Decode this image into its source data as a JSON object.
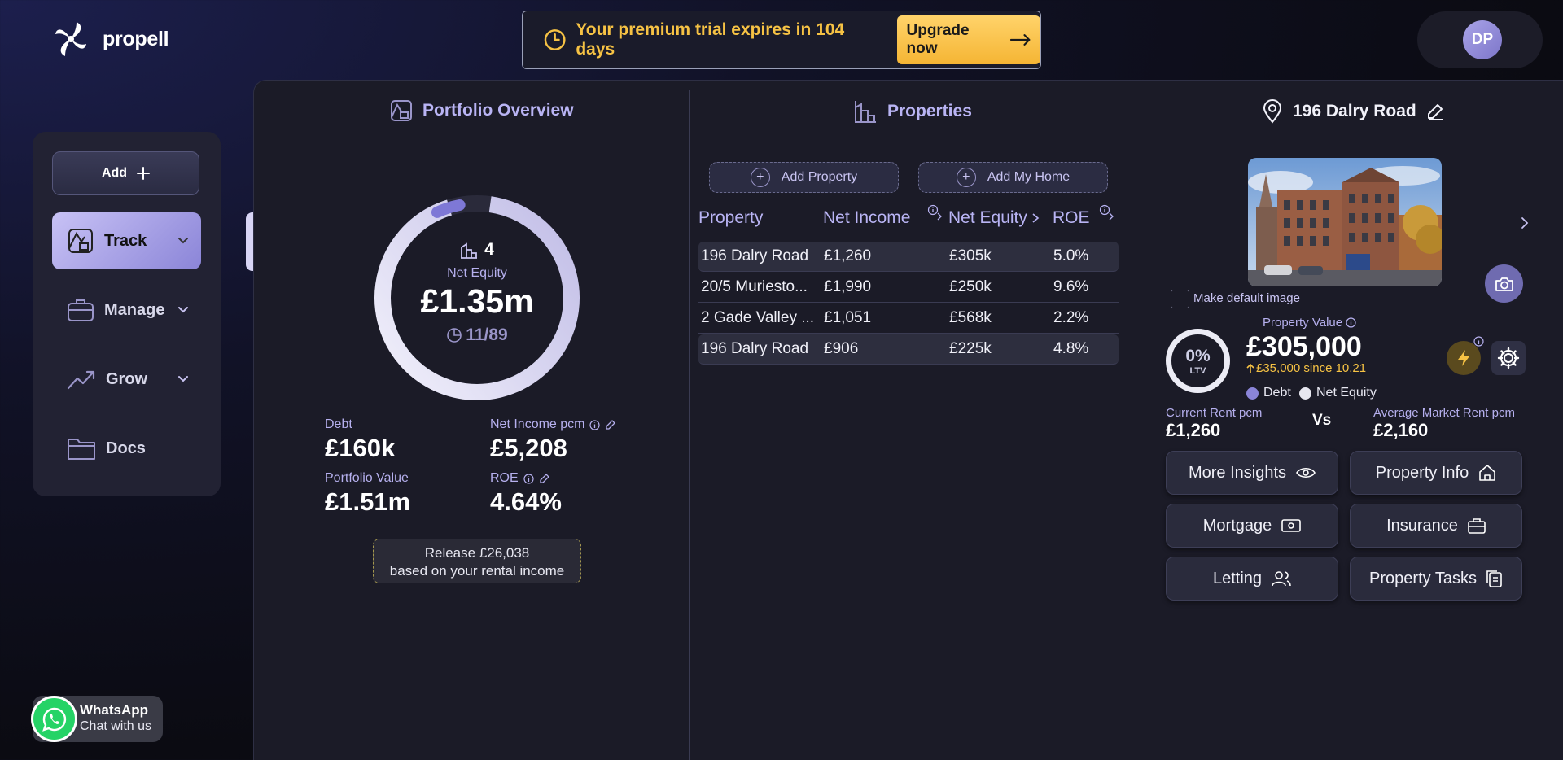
{
  "app": {
    "name": "propell"
  },
  "trial": {
    "message": "Your premium trial expires in 104 days",
    "upgrade_label": "Upgrade now"
  },
  "user": {
    "initials": "DP"
  },
  "sidebar": {
    "add_label": "Add",
    "items": [
      {
        "label": "Track",
        "active": true
      },
      {
        "label": "Manage"
      },
      {
        "label": "Grow"
      },
      {
        "label": "Docs"
      }
    ]
  },
  "columns": {
    "overview_title": "Portfolio Overview",
    "properties_title": "Properties",
    "detail_title": "196 Dalry Road"
  },
  "overview": {
    "property_count": "4",
    "net_equity_label": "Net Equity",
    "net_equity_value": "£1.35m",
    "progress_text": "11/89",
    "ring_fill_fraction": 0.93,
    "debt_label": "Debt",
    "debt_value": "£160k",
    "net_income_label": "Net Income pcm",
    "net_income_value": "£5,208",
    "portfolio_value_label": "Portfolio Value",
    "portfolio_value_value": "£1.51m",
    "roe_label": "ROE",
    "roe_value": "4.64%",
    "release_line1": "Release £26,038",
    "release_line2": "based on your rental income"
  },
  "properties": {
    "add_property_label": "Add Property",
    "add_home_label": "Add My Home",
    "headers": [
      "Property",
      "Net Income",
      "Net Equity",
      "ROE"
    ],
    "rows": [
      {
        "property": "196 Dalry Road",
        "net_income": "£1,260",
        "net_equity": "£305k",
        "roe": "5.0%",
        "highlighted": true
      },
      {
        "property": "20/5 Muriesto...",
        "net_income": "£1,990",
        "net_equity": "£250k",
        "roe": "9.6%"
      },
      {
        "property": "2 Gade Valley ...",
        "net_income": "£1,051",
        "net_equity": "£568k",
        "roe": "2.2%"
      },
      {
        "property": "196 Dalry Road",
        "net_income": "£906",
        "net_equity": "£225k",
        "roe": "4.8%",
        "highlighted": true
      }
    ]
  },
  "detail": {
    "make_default_label": "Make default image",
    "ltv_value": "0%",
    "ltv_label": "LTV",
    "property_value_label": "Property Value",
    "property_value": "£305,000",
    "value_change": "£35,000 since 10.21",
    "legend_debt": "Debt",
    "legend_equity": "Net Equity",
    "current_rent_label": "Current Rent pcm",
    "current_rent_value": "£1,260",
    "vs_label": "Vs",
    "market_rent_label": "Average Market Rent pcm",
    "market_rent_value": "£2,160",
    "buttons": {
      "more_insights": "More Insights",
      "property_info": "Property Info",
      "mortgage": "Mortgage",
      "insurance": "Insurance",
      "letting": "Letting",
      "property_tasks": "Property Tasks"
    }
  },
  "whatsapp": {
    "title": "WhatsApp",
    "subtitle": "Chat with us"
  },
  "colors": {
    "accent": "#b9b4f4",
    "warning": "#f6c244",
    "debt_dot": "#8b85d8",
    "equity_dot": "#e6e6ef"
  }
}
